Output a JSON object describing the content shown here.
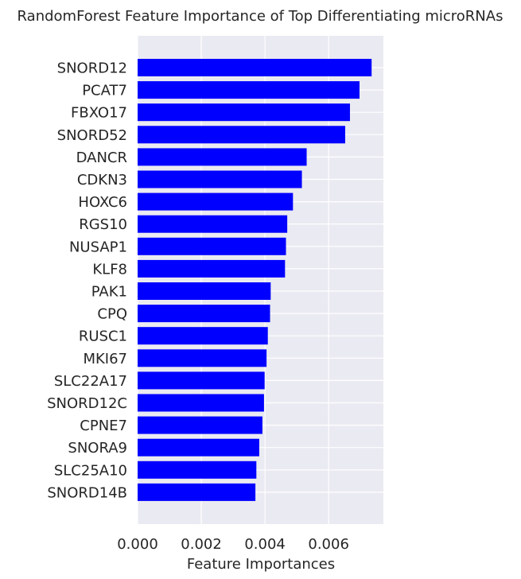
{
  "chart_data": {
    "type": "bar",
    "orientation": "horizontal",
    "title": "RandomForest Feature Importance of Top Differentiating microRNAs",
    "xlabel": "Feature Importances",
    "ylabel": "",
    "xlim": [
      0,
      0.00772
    ],
    "xticks": [
      "0.000",
      "0.002",
      "0.004",
      "0.006"
    ],
    "xtick_values": [
      0,
      0.002,
      0.004,
      0.006
    ],
    "grid": true,
    "bar_color": "#0000ff",
    "background_color": "#eaeaf2",
    "categories": [
      "SNORD12",
      "PCAT7",
      "FBXO17",
      "SNORD52",
      "DANCR",
      "CDKN3",
      "HOXC6",
      "RGS10",
      "NUSAP1",
      "KLF8",
      "PAK1",
      "CPQ",
      "RUSC1",
      "MKI67",
      "SLC22A17",
      "SNORD12C",
      "CPNE7",
      "SNORA9",
      "SLC25A10",
      "SNORD14B"
    ],
    "values": [
      0.00735,
      0.00697,
      0.00667,
      0.00652,
      0.00531,
      0.00516,
      0.00488,
      0.0047,
      0.00466,
      0.00463,
      0.00418,
      0.00416,
      0.00409,
      0.00405,
      0.00399,
      0.00397,
      0.00392,
      0.00382,
      0.00373,
      0.0037
    ]
  }
}
